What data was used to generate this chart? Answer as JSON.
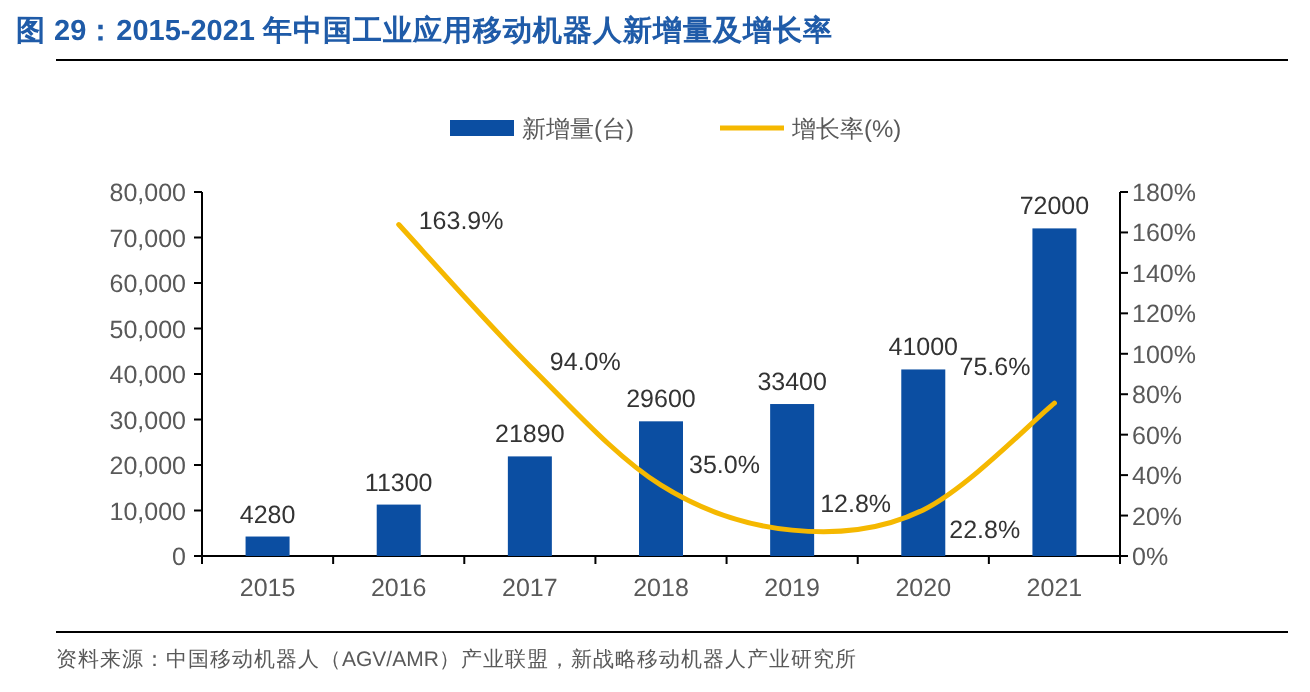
{
  "chart_data": {
    "type": "bar",
    "title": "图 29：2015-2021 年中国工业应用移动机器人新增量及增长率",
    "categories": [
      "2015",
      "2016",
      "2017",
      "2018",
      "2019",
      "2020",
      "2021"
    ],
    "series": [
      {
        "name": "新增量(台)",
        "color": "#0b4ea2",
        "values": [
          4280,
          11300,
          21890,
          29600,
          33400,
          41000,
          72000
        ],
        "value_labels": [
          "4280",
          "11300",
          "21890",
          "29600",
          "33400",
          "41000",
          "72000"
        ]
      },
      {
        "name": "增长率(%)",
        "type": "line",
        "axis": "y2",
        "color": "#f5b800",
        "values": [
          null,
          163.9,
          94.0,
          35.0,
          12.8,
          22.8,
          75.6
        ],
        "value_labels": [
          null,
          "163.9%",
          "94.0%",
          "35.0%",
          "12.8%",
          "22.8%",
          "75.6%"
        ]
      }
    ],
    "ylim": [
      0,
      80000
    ],
    "yticks": [
      {
        "value": 0,
        "label": "0"
      },
      {
        "value": 10000,
        "label": "10,000"
      },
      {
        "value": 20000,
        "label": "20,000"
      },
      {
        "value": 30000,
        "label": "30,000"
      },
      {
        "value": 40000,
        "label": "40,000"
      },
      {
        "value": 50000,
        "label": "50,000"
      },
      {
        "value": 60000,
        "label": "60,000"
      },
      {
        "value": 70000,
        "label": "70,000"
      },
      {
        "value": 80000,
        "label": "80,000"
      }
    ],
    "y2lim": [
      0,
      180
    ],
    "y2ticks": [
      {
        "value": 0,
        "label": "0%"
      },
      {
        "value": 20,
        "label": "20%"
      },
      {
        "value": 40,
        "label": "40%"
      },
      {
        "value": 60,
        "label": "60%"
      },
      {
        "value": 80,
        "label": "80%"
      },
      {
        "value": 100,
        "label": "100%"
      },
      {
        "value": 120,
        "label": "120%"
      },
      {
        "value": 140,
        "label": "140%"
      },
      {
        "value": 160,
        "label": "160%"
      },
      {
        "value": 180,
        "label": "180%"
      }
    ],
    "legend": "top",
    "annotations": [
      "资料来源：中国移动机器人（AGV/AMR）产业联盟，新战略移动机器人产业研究所"
    ]
  }
}
